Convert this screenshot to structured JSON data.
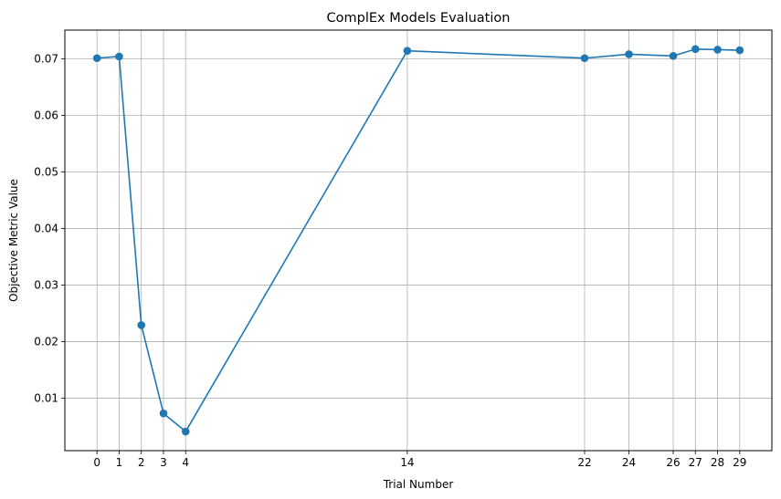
{
  "chart_data": {
    "type": "line",
    "title": "ComplEx Models Evaluation",
    "xlabel": "Trial Number",
    "ylabel": "Objective Metric Value",
    "x": [
      0,
      1,
      2,
      3,
      4,
      14,
      22,
      24,
      26,
      27,
      28,
      29
    ],
    "y": [
      0.0701,
      0.0704,
      0.0229,
      0.0073,
      0.0041,
      0.0714,
      0.0701,
      0.0708,
      0.0705,
      0.0717,
      0.0716,
      0.0715
    ],
    "xticks": [
      "0",
      "1",
      "2",
      "3",
      "4",
      "14",
      "22",
      "24",
      "26",
      "27",
      "28",
      "29"
    ],
    "yticks": [
      "0.01",
      "0.02",
      "0.03",
      "0.04",
      "0.05",
      "0.06",
      "0.07"
    ],
    "ytick_values": [
      0.01,
      0.02,
      0.03,
      0.04,
      0.05,
      0.06,
      0.07
    ],
    "xlim": [
      -1.45,
      30.45
    ],
    "ylim": [
      0.00072,
      0.07506
    ],
    "grid": true,
    "marker": "circle",
    "colors": {
      "line": "#1f77b4",
      "grid": "#b0b0b0",
      "axes": "#000000"
    }
  }
}
